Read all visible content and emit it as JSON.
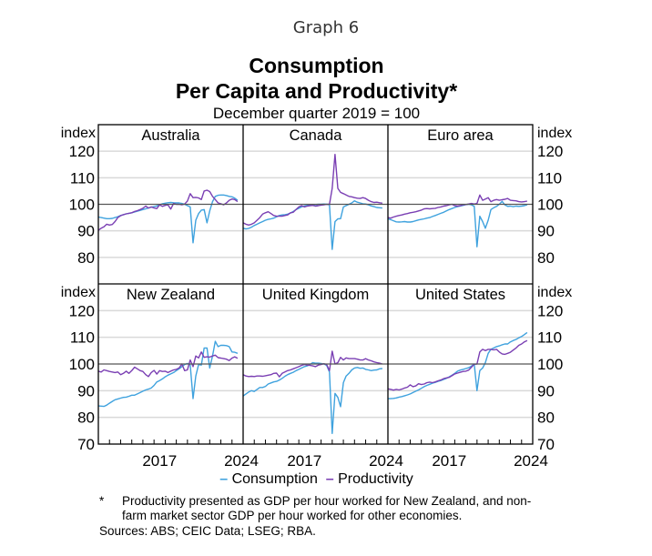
{
  "header": {
    "graph_label": "Graph 6",
    "title_line1": "Consumption",
    "title_line2": "Per Capita and Productivity*",
    "subtitle": "December quarter 2019 = 100"
  },
  "legend": {
    "items": [
      {
        "label": "Consumption",
        "color": "#3fa2de"
      },
      {
        "label": "Productivity",
        "color": "#7a3fb3"
      }
    ]
  },
  "footnote": {
    "marker": "*",
    "text": "Productivity presented as GDP per hour worked for New Zealand, and non-farm market sector GDP per hour worked for other economies."
  },
  "sources": "Sources:  ABS; CEIC Data; LSEG; RBA.",
  "chart_data": {
    "type": "line",
    "title": "Consumption Per Capita and Productivity*",
    "subtitle": "December quarter 2019 = 100",
    "ylabel": "index",
    "ylim": [
      70,
      130
    ],
    "xlim": [
      2012.0,
      2025.0
    ],
    "x_tick_labels": [
      "2017",
      "2024"
    ],
    "y_ticks_top_row": [
      "120",
      "110",
      "100",
      "90",
      "80"
    ],
    "y_ticks_bottom_row": [
      "120",
      "110",
      "100",
      "90",
      "80",
      "70"
    ],
    "reference_line": 100,
    "grid": true,
    "legend_position": "bottom-center",
    "x_start": 2012.0,
    "x_step": 0.25,
    "panels": [
      {
        "name": "Australia",
        "series": [
          {
            "name": "Consumption",
            "values": [
              95.2,
              95.0,
              94.8,
              94.6,
              94.6,
              94.7,
              95.0,
              95.3,
              95.8,
              96.1,
              96.4,
              96.6,
              96.8,
              97.1,
              97.4,
              97.7,
              98.0,
              98.3,
              98.6,
              98.9,
              99.1,
              99.4,
              99.8,
              100.2,
              100.4,
              100.6,
              100.7,
              100.6,
              100.5,
              100.5,
              100.3,
              100.0,
              99.5,
              99.0,
              85.5,
              94.0,
              96.5,
              97.8,
              98.0,
              93.0,
              97.5,
              101.0,
              103.0,
              103.4,
              103.5,
              103.5,
              103.3,
              103.0,
              102.8,
              102.3,
              101.5
            ]
          },
          {
            "name": "Productivity",
            "values": [
              90.2,
              91.0,
              91.5,
              92.5,
              92.2,
              92.4,
              93.5,
              95.0,
              95.7,
              96.1,
              96.4,
              96.6,
              96.8,
              97.3,
              97.6,
              98.0,
              98.5,
              99.3,
              98.6,
              99.0,
              98.6,
              98.4,
              99.8,
              99.2,
              99.6,
              99.8,
              98.2,
              100.3,
              100.0,
              100.0,
              99.8,
              100.1,
              101.2,
              104.0,
              102.5,
              102.6,
              102.4,
              101.8,
              105.0,
              105.3,
              104.8,
              103.0,
              101.8,
              100.5,
              100.2,
              99.8,
              100.5,
              101.5,
              102.0,
              101.8,
              101.0
            ]
          }
        ]
      },
      {
        "name": "Canada",
        "series": [
          {
            "name": "Consumption",
            "values": [
              91.0,
              90.7,
              90.9,
              91.4,
              92.0,
              92.5,
              93.0,
              93.5,
              94.0,
              94.3,
              94.5,
              94.8,
              95.3,
              95.8,
              96.0,
              96.1,
              96.3,
              96.7,
              97.3,
              98.0,
              98.5,
              99.0,
              99.4,
              99.6,
              99.8,
              99.9,
              99.9,
              100.0,
              100.0,
              100.1,
              100.0,
              99.8,
              83.0,
              93.5,
              94.5,
              94.6,
              99.0,
              99.5,
              100.0,
              100.5,
              101.3,
              100.8,
              100.5,
              100.2,
              100.1,
              99.8,
              99.4,
              99.1,
              98.8,
              98.7,
              98.6
            ]
          },
          {
            "name": "Productivity",
            "values": [
              93.0,
              92.5,
              92.2,
              92.5,
              93.0,
              94.0,
              95.0,
              96.3,
              96.8,
              97.2,
              96.5,
              95.8,
              95.5,
              95.5,
              95.5,
              95.8,
              96.0,
              96.8,
              97.0,
              98.0,
              99.0,
              99.5,
              99.0,
              99.3,
              99.5,
              99.6,
              99.3,
              99.5,
              99.7,
              99.8,
              100.0,
              100.0,
              106.0,
              118.8,
              106.0,
              104.5,
              104.0,
              103.5,
              103.0,
              102.8,
              102.5,
              102.3,
              102.2,
              102.5,
              102.2,
              101.5,
              101.0,
              100.7,
              100.8,
              100.6,
              100.4
            ]
          }
        ]
      },
      {
        "name": "Euro area",
        "series": [
          {
            "name": "Consumption",
            "values": [
              94.5,
              94.2,
              93.8,
              93.4,
              93.3,
              93.4,
              93.5,
              93.3,
              93.3,
              93.5,
              93.8,
              94.1,
              94.3,
              94.5,
              94.8,
              95.0,
              95.4,
              95.8,
              96.2,
              96.6,
              97.0,
              97.5,
              98.0,
              98.4,
              98.8,
              99.1,
              99.3,
              99.6,
              99.9,
              100.0,
              99.8,
              99.2,
              84.0,
              95.5,
              93.5,
              91.0,
              94.0,
              98.0,
              98.7,
              99.2,
              100.0,
              101.1,
              99.8,
              99.2,
              99.3,
              99.1,
              99.3,
              99.2,
              99.3,
              99.5,
              99.8
            ]
          },
          {
            "name": "Productivity",
            "values": [
              95.0,
              94.8,
              95.2,
              95.5,
              95.8,
              96.0,
              96.3,
              96.5,
              96.8,
              97.0,
              97.2,
              97.5,
              97.8,
              98.3,
              98.4,
              98.3,
              98.4,
              98.5,
              98.8,
              99.0,
              99.3,
              99.5,
              99.8,
              100.0,
              99.5,
              99.3,
              99.5,
              99.8,
              99.9,
              100.1,
              100.3,
              100.1,
              100.3,
              103.5,
              101.5,
              102.0,
              102.5,
              101.0,
              101.5,
              101.8,
              101.5,
              101.7,
              101.9,
              102.2,
              101.5,
              101.4,
              101.3,
              101.0,
              100.9,
              101.0,
              101.2
            ]
          }
        ]
      },
      {
        "name": "New Zealand",
        "series": [
          {
            "name": "Consumption",
            "values": [
              84.3,
              84.2,
              84.1,
              84.6,
              85.3,
              86.0,
              86.6,
              86.9,
              87.2,
              87.5,
              87.6,
              87.9,
              88.3,
              88.3,
              88.8,
              89.3,
              89.8,
              90.3,
              90.6,
              91.0,
              92.0,
              93.3,
              93.8,
              94.4,
              95.2,
              95.8,
              96.3,
              96.8,
              97.5,
              98.2,
              99.0,
              99.8,
              100.2,
              99.6,
              87.0,
              95.5,
              99.8,
              99.6,
              106.0,
              106.0,
              98.5,
              103.0,
              108.5,
              106.5,
              107.0,
              107.0,
              106.9,
              106.5,
              104.5,
              104.4,
              104.0
            ]
          },
          {
            "name": "Productivity",
            "values": [
              97.3,
              97.0,
              97.8,
              97.5,
              97.2,
              97.0,
              96.8,
              97.0,
              96.0,
              96.5,
              97.3,
              96.5,
              97.5,
              98.8,
              98.2,
              97.5,
              97.2,
              96.0,
              95.3,
              96.8,
              97.6,
              96.2,
              97.5,
              97.2,
              97.3,
              96.8,
              97.3,
              97.8,
              98.0,
              98.5,
              100.0,
              97.5,
              97.8,
              101.5,
              99.0,
              103.0,
              102.3,
              104.5,
              102.5,
              102.7,
              102.6,
              103.0,
              103.3,
              102.4,
              102.2,
              102.0,
              101.8,
              101.3,
              102.2,
              102.7,
              102.1
            ]
          }
        ]
      },
      {
        "name": "United Kingdom",
        "series": [
          {
            "name": "Consumption",
            "values": [
              88.0,
              88.8,
              89.5,
              90.0,
              89.7,
              90.5,
              91.2,
              91.2,
              91.6,
              92.5,
              92.9,
              93.3,
              93.5,
              94.0,
              94.6,
              95.4,
              96.0,
              96.5,
              96.9,
              97.5,
              98.0,
              98.5,
              99.0,
              99.3,
              99.8,
              100.5,
              100.3,
              100.3,
              100.2,
              100.0,
              99.5,
              97.0,
              74.0,
              89.0,
              87.5,
              84.0,
              93.0,
              95.5,
              96.5,
              97.8,
              98.5,
              98.7,
              98.4,
              98.5,
              98.0,
              97.8,
              97.5,
              97.7,
              97.8,
              98.2,
              98.3
            ]
          },
          {
            "name": "Productivity",
            "values": [
              96.0,
              95.5,
              95.3,
              95.4,
              95.3,
              95.5,
              95.5,
              95.4,
              95.6,
              95.8,
              96.0,
              96.5,
              96.6,
              95.2,
              96.5,
              97.0,
              97.5,
              97.8,
              98.2,
              98.6,
              99.0,
              99.5,
              99.8,
              99.6,
              99.5,
              99.3,
              99.0,
              99.6,
              99.8,
              100.1,
              99.8,
              97.5,
              104.8,
              100.0,
              100.5,
              102.5,
              101.5,
              102.3,
              102.0,
              102.0,
              102.0,
              101.8,
              101.5,
              101.5,
              102.0,
              101.5,
              101.2,
              100.8,
              100.5,
              100.3,
              100.0
            ]
          }
        ]
      },
      {
        "name": "United States",
        "series": [
          {
            "name": "Consumption",
            "values": [
              87.0,
              87.0,
              87.1,
              87.3,
              87.6,
              87.8,
              88.1,
              88.4,
              88.8,
              89.3,
              89.8,
              90.3,
              90.9,
              91.5,
              92.0,
              92.4,
              92.8,
              93.1,
              93.5,
              93.8,
              94.2,
              94.6,
              95.2,
              95.8,
              96.5,
              97.3,
              97.7,
              98.0,
              98.3,
              98.6,
              99.2,
              100.0,
              90.0,
              97.5,
              98.5,
              100.5,
              104.0,
              105.5,
              106.0,
              106.5,
              106.8,
              107.2,
              107.5,
              107.5,
              108.3,
              108.8,
              109.2,
              109.8,
              110.3,
              111.0,
              111.8
            ]
          },
          {
            "name": "Productivity",
            "values": [
              90.7,
              90.5,
              90.2,
              90.5,
              90.3,
              90.6,
              91.0,
              91.3,
              92.2,
              91.5,
              91.8,
              92.6,
              92.3,
              92.5,
              93.0,
              93.2,
              93.0,
              93.3,
              93.7,
              94.0,
              94.5,
              94.8,
              95.0,
              95.6,
              96.3,
              96.6,
              96.9,
              97.2,
              97.3,
              97.7,
              98.8,
              99.9,
              100.0,
              104.5,
              105.5,
              105.0,
              105.5,
              105.5,
              105.3,
              105.5,
              104.5,
              103.8,
              103.6,
              104.0,
              104.4,
              105.2,
              106.0,
              107.0,
              107.5,
              108.3,
              108.8
            ]
          }
        ]
      }
    ]
  }
}
